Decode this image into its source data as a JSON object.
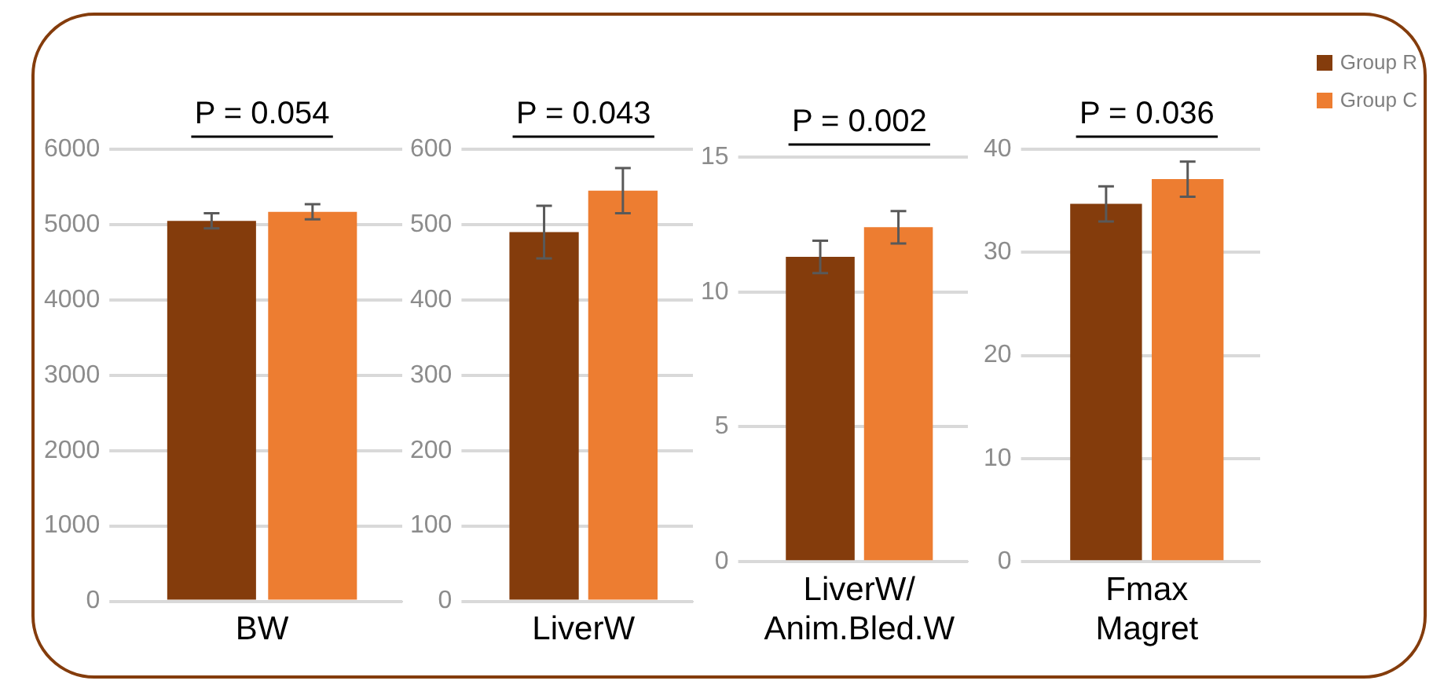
{
  "chart_data": [
    {
      "type": "bar",
      "categories": [
        "BW"
      ],
      "series": [
        {
          "color": "#843c0c",
          "values": [
            5050
          ],
          "errors": [
            100
          ]
        },
        {
          "color": "#ed7d31",
          "values": [
            5170
          ],
          "errors": [
            100
          ]
        }
      ],
      "ylim": [
        0,
        6000
      ],
      "yticks": [
        0,
        1000,
        2000,
        3000,
        4000,
        5000,
        6000
      ],
      "grid": "y",
      "legend": false,
      "annotations": [
        "P = 0.054"
      ]
    },
    {
      "type": "bar",
      "categories": [
        "LiverW"
      ],
      "series": [
        {
          "color": "#843c0c",
          "values": [
            490
          ],
          "errors": [
            35
          ]
        },
        {
          "color": "#ed7d31",
          "values": [
            545
          ],
          "errors": [
            30
          ]
        }
      ],
      "ylim": [
        0,
        600
      ],
      "yticks": [
        0,
        100,
        200,
        300,
        400,
        500,
        600
      ],
      "grid": "y",
      "legend": false,
      "annotations": [
        "P = 0.043"
      ]
    },
    {
      "type": "bar",
      "categories": [
        "LiverW/\nAnim.Bled.W"
      ],
      "series": [
        {
          "color": "#843c0c",
          "values": [
            11.3
          ],
          "errors": [
            0.6
          ]
        },
        {
          "color": "#ed7d31",
          "values": [
            12.4
          ],
          "errors": [
            0.6
          ]
        }
      ],
      "ylim": [
        0,
        15
      ],
      "yticks": [
        0,
        5,
        10,
        15
      ],
      "grid": "y",
      "legend": false,
      "annotations": [
        "P = 0.002"
      ]
    },
    {
      "type": "bar",
      "categories": [
        "Fmax\nMagret"
      ],
      "series": [
        {
          "name": "Group R",
          "color": "#843c0c",
          "values": [
            34.7
          ],
          "errors": [
            1.7
          ]
        },
        {
          "name": "Group C",
          "color": "#ed7d31",
          "values": [
            37.1
          ],
          "errors": [
            1.7
          ]
        }
      ],
      "ylim": [
        0,
        40
      ],
      "yticks": [
        0,
        10,
        20,
        30,
        40
      ],
      "grid": "y",
      "legend": "top right",
      "annotations": [
        "P = 0.036"
      ]
    }
  ]
}
